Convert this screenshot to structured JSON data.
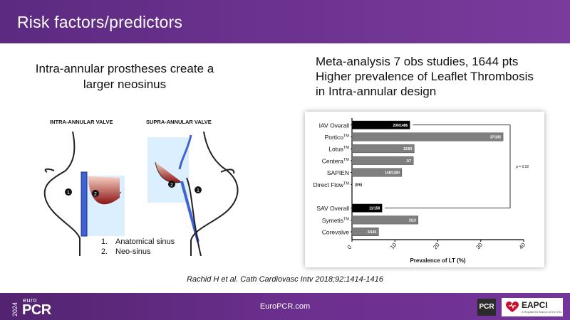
{
  "header": {
    "title": "Risk factors/predictors"
  },
  "left": {
    "heading_line1": "Intra-annular prostheses create a",
    "heading_line2": "larger neosinus",
    "intra_label": "INTRA-ANNULAR VALVE",
    "supra_label": "SUPRA-ANNULAR VALVE",
    "marker_1": "1",
    "marker_2": "2",
    "legend": [
      {
        "num": "1.",
        "text": "Anatomical sinus"
      },
      {
        "num": "2.",
        "text": "Neo-sinus"
      }
    ]
  },
  "right": {
    "heading_lines": [
      "Meta-analysis 7 obs studies, 1644 pts",
      "Higher prevalence of Leaflet Thrombosis",
      "in Intra-annular design"
    ]
  },
  "chart_data": {
    "type": "bar",
    "orientation": "horizontal",
    "xlabel": "Prevalence of LT (%)",
    "xlim": [
      0,
      40
    ],
    "xticks": [
      0,
      10,
      20,
      30,
      40
    ],
    "p_value": "p = 0.02",
    "bars": [
      {
        "category": "IAV Overall",
        "tm": false,
        "value": 13.5,
        "label": "200/1486",
        "color": "#000000"
      },
      {
        "category": "Portico",
        "tm": true,
        "value": 35.2,
        "label": "37/105",
        "color": "#7f7f7f"
      },
      {
        "category": "Lotus",
        "tm": true,
        "value": 14.5,
        "label": "12/83",
        "color": "#7f7f7f"
      },
      {
        "category": "Centera",
        "tm": true,
        "value": 14.3,
        "label": "1/7",
        "color": "#7f7f7f"
      },
      {
        "category": "SAPIEN",
        "tm": false,
        "value": 11.6,
        "label": "148/1280",
        "color": "#7f7f7f"
      },
      {
        "category": "Direct Flow",
        "tm": true,
        "value": 0,
        "label": "(0/6)",
        "color": "#7f7f7f"
      },
      {
        "category": "SAV Overall",
        "tm": false,
        "value": 7.0,
        "label": "11/158",
        "color": "#000000"
      },
      {
        "category": "Symetis",
        "tm": true,
        "value": 15.4,
        "label": "2/13",
        "color": "#7f7f7f"
      },
      {
        "category": "Corevalve",
        "tm": false,
        "value": 6.2,
        "label": "9/145",
        "color": "#7f7f7f"
      }
    ]
  },
  "citation": "Rachid H et al. Cath Cardiovasc Intv 2018;92:1414-1416",
  "footer": {
    "url": "EuroPCR.com",
    "logo_year": "2024",
    "logo_euro": "euro",
    "logo_pcr": "PCR",
    "badge_pcr": "PCR",
    "badge_eapci": "EAPCI",
    "badge_eapci_sub": "A Registered Branch of the ESC",
    "accent": "#6b2f8d"
  }
}
